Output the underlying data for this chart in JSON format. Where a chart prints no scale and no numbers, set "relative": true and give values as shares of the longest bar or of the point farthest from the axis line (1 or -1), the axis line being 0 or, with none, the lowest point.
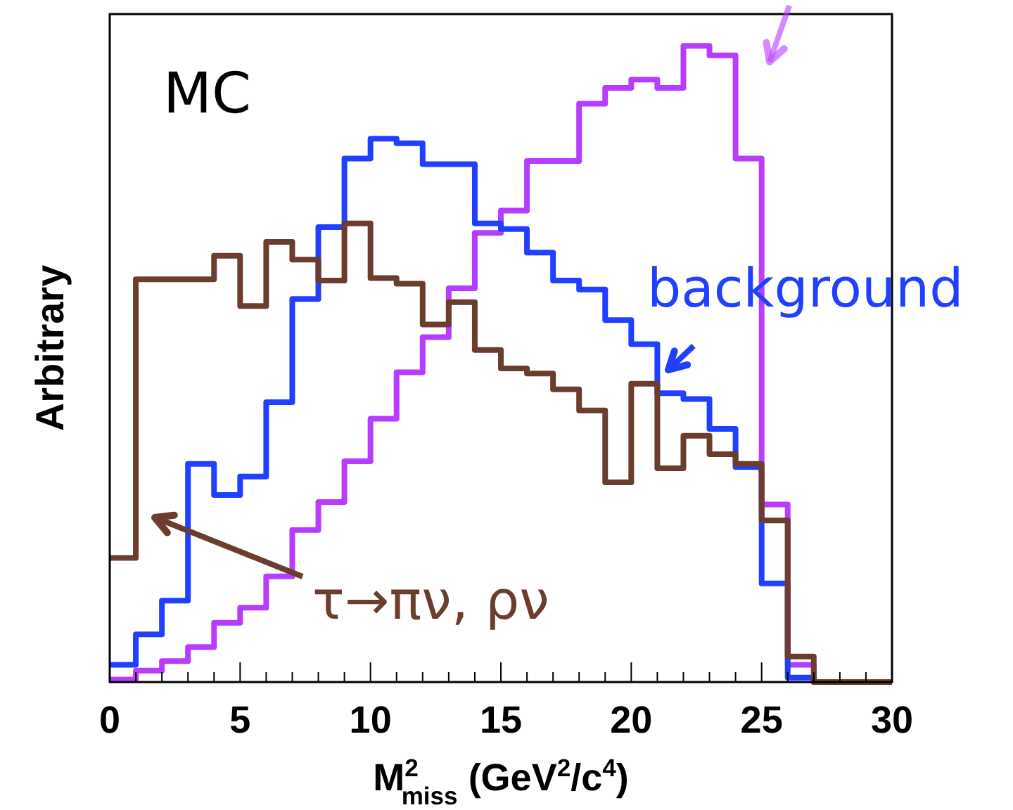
{
  "chart_data": {
    "type": "step",
    "relative": true,
    "xlabel": "M$^{2}$$_{miss}$ (GeV$^{2}$/c$^{4}$)",
    "ylabel": "Arbitrary",
    "annotations": [
      "MC"
    ],
    "x": [
      0,
      1,
      2,
      3,
      4,
      5,
      6,
      7,
      8,
      9,
      10,
      11,
      12,
      13,
      14,
      15,
      16,
      17,
      18,
      19,
      20,
      21,
      22,
      23,
      24,
      25,
      26,
      27,
      28,
      29,
      30
    ],
    "xlim": [
      0,
      30
    ],
    "xticks": [
      0,
      {
        "value": 1,
        "label": null
      },
      {
        "value": 2,
        "label": null
      },
      {
        "value": 3,
        "label": null
      },
      {
        "value": 4,
        "label": null
      },
      5,
      {
        "value": 6,
        "label": null
      },
      {
        "value": 7,
        "label": null
      },
      {
        "value": 8,
        "label": null
      },
      {
        "value": 9,
        "label": null
      },
      10,
      {
        "value": 11,
        "label": null
      },
      {
        "value": 12,
        "label": null
      },
      {
        "value": 13,
        "label": null
      },
      {
        "value": 14,
        "label": null
      },
      15,
      {
        "value": 16,
        "label": null
      },
      {
        "value": 17,
        "label": null
      },
      {
        "value": 18,
        "label": null
      },
      {
        "value": 19,
        "label": null
      },
      20,
      {
        "value": 21,
        "label": null
      },
      {
        "value": 22,
        "label": null
      },
      {
        "value": 23,
        "label": null
      },
      {
        "value": 24,
        "label": null
      },
      25,
      {
        "value": 26,
        "label": null
      },
      {
        "value": 27,
        "label": null
      },
      {
        "value": 28,
        "label": null
      },
      {
        "value": 29,
        "label": null
      },
      30
    ],
    "grid": false,
    "series": [
      {
        "color": "#b73cff",
        "values": [
          0.004,
          0.018,
          0.033,
          0.055,
          0.093,
          0.117,
          0.166,
          0.239,
          0.283,
          0.347,
          0.414,
          0.487,
          0.542,
          0.619,
          0.706,
          0.741,
          0.819,
          0.819,
          0.909,
          0.934,
          0.947,
          0.934,
          1,
          0.985,
          0.823,
          0.279,
          0.027,
          0,
          0,
          null,
          null
        ]
      },
      {
        "name": "background",
        "color": "#2040ff",
        "values": [
          0.027,
          0.075,
          0.128,
          0.343,
          0.294,
          0.323,
          0.44,
          0.602,
          0.715,
          0.823,
          0.854,
          0.847,
          0.814,
          0.814,
          0.721,
          0.712,
          0.675,
          0.631,
          0.617,
          0.569,
          0.531,
          0.454,
          0.445,
          0.398,
          0.338,
          0.155,
          0.007,
          0,
          0,
          null,
          null
        ]
      },
      {
        "name": "τ→πν, ρν",
        "color": "#6b3d2e",
        "values": [
          0.195,
          0.633,
          0.633,
          0.633,
          0.67,
          0.591,
          0.692,
          0.664,
          0.631,
          0.721,
          0.635,
          0.626,
          0.562,
          0.597,
          0.522,
          0.493,
          0.485,
          0.46,
          0.427,
          0.314,
          0.469,
          0.336,
          0.387,
          0.358,
          0.343,
          0.254,
          0.04,
          0,
          0,
          0,
          0
        ]
      }
    ]
  }
}
